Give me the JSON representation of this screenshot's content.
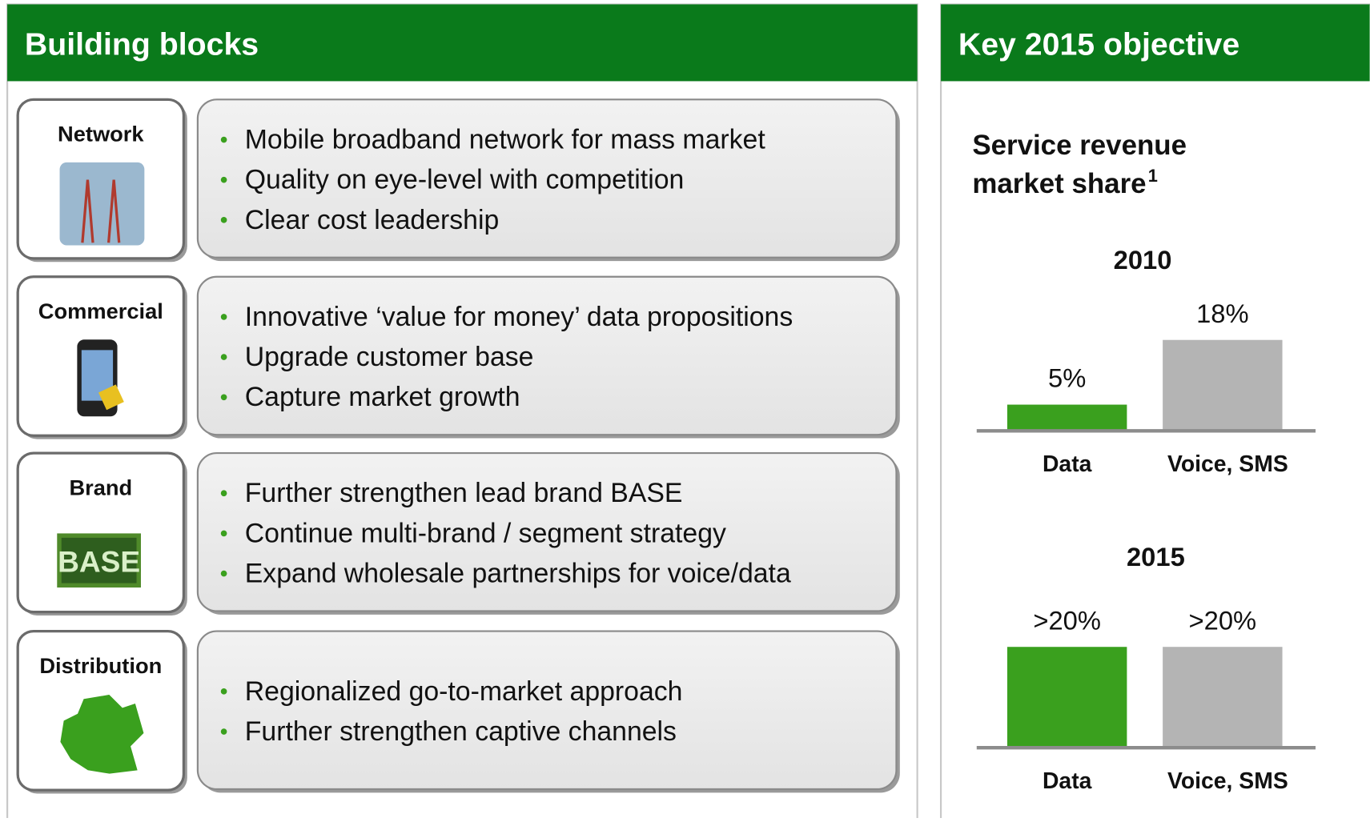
{
  "left_panel": {
    "title": "Building blocks",
    "blocks": [
      {
        "label": "Network",
        "bullets": [
          "Mobile broadband network for mass market",
          "Quality on eye-level with competition",
          "Clear cost leadership"
        ]
      },
      {
        "label": "Commercial",
        "bullets": [
          "Innovative ‘value for money’ data propositions",
          "Upgrade customer base",
          "Capture market growth"
        ]
      },
      {
        "label": "Brand",
        "logo": "BASE",
        "bullets": [
          "Further strengthen lead brand BASE",
          "Continue multi-brand / segment strategy",
          "Expand wholesale partnerships for voice/data"
        ]
      },
      {
        "label": "Distribution",
        "bullets": [
          "Regionalized go-to-market approach",
          "Further strengthen captive channels"
        ]
      }
    ]
  },
  "right_panel": {
    "title": "Key 2015 objective",
    "subtitle_lines": [
      "Service revenue",
      "market share"
    ],
    "subtitle_footnote": "1"
  },
  "chart_data": [
    {
      "type": "bar",
      "title": "2010",
      "categories": [
        "Data",
        "Voice, SMS"
      ],
      "values": [
        5,
        18
      ],
      "value_labels": [
        "5%",
        "18%"
      ],
      "colors": [
        "#3aa01e",
        "#b4b4b4"
      ],
      "ylim": [
        0,
        20
      ]
    },
    {
      "type": "bar",
      "title": "2015",
      "categories": [
        "Data",
        "Voice, SMS"
      ],
      "values": [
        20,
        20
      ],
      "value_labels": [
        ">20%",
        ">20%"
      ],
      "colors": [
        "#3aa01e",
        "#b4b4b4"
      ],
      "ylim": [
        0,
        20
      ]
    }
  ]
}
